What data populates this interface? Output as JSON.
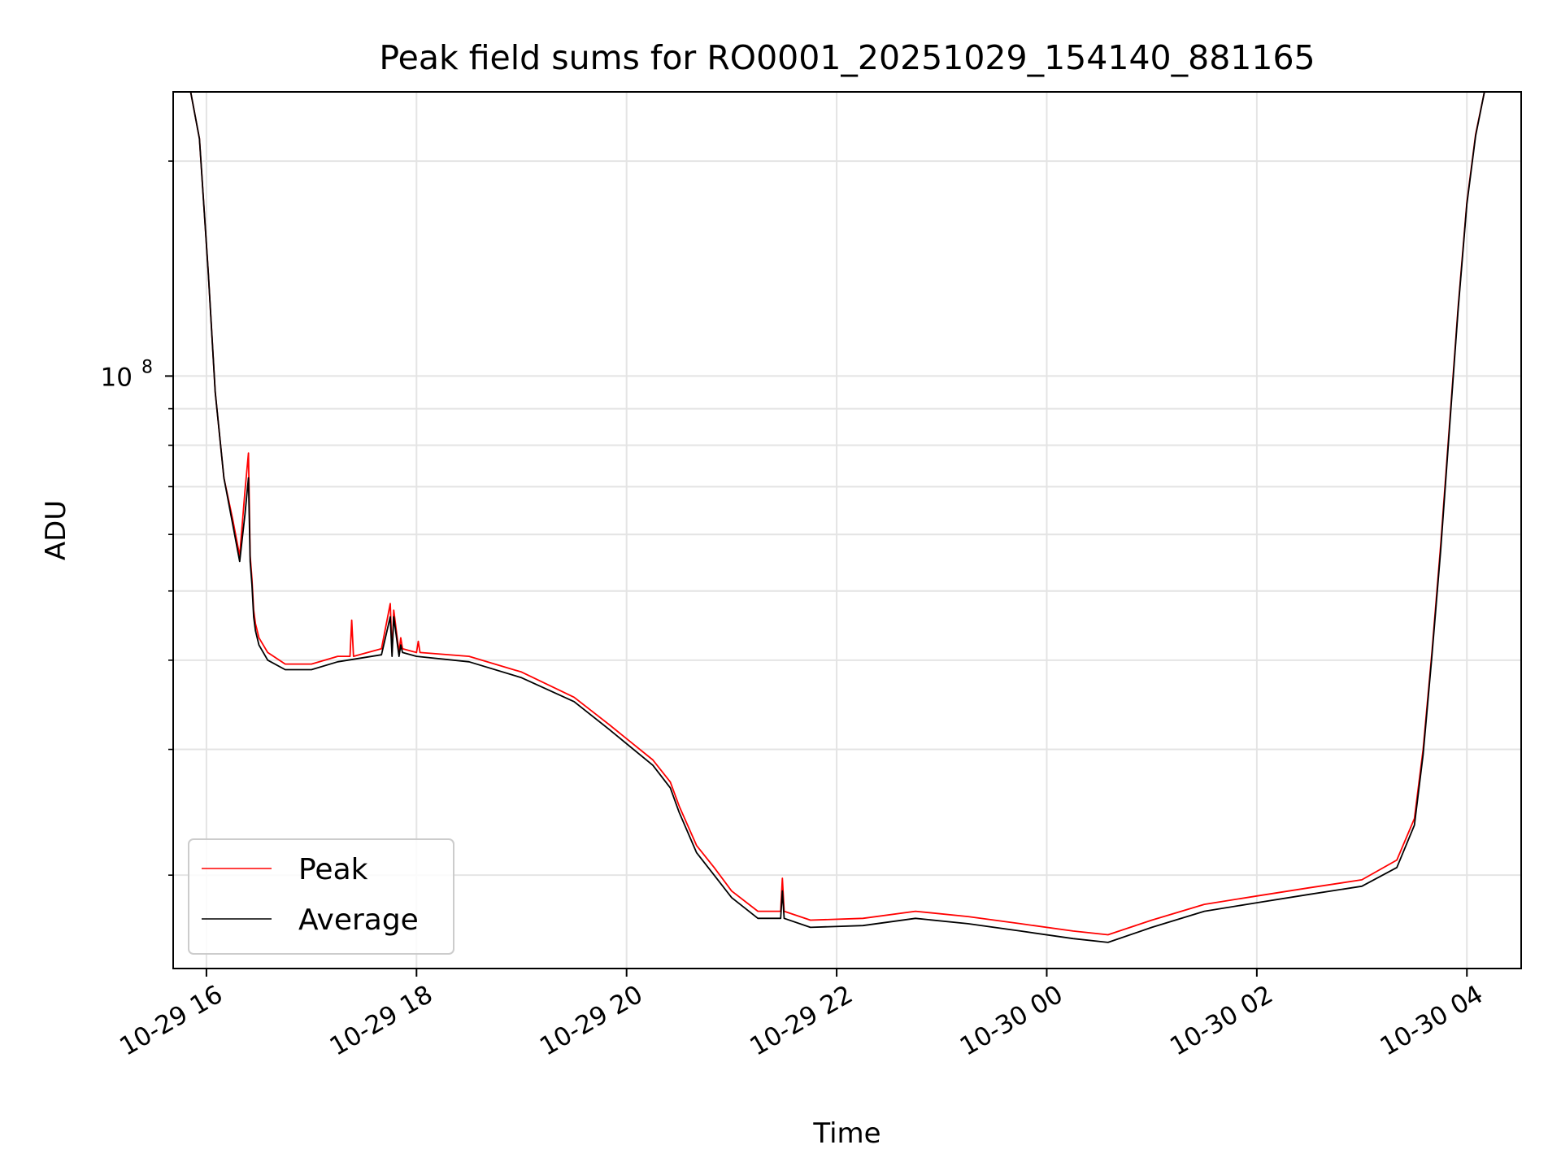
{
  "chart_data": {
    "type": "line",
    "title": "Peak field sums for RO0001_20251029_154140_881165",
    "xlabel": "Time",
    "ylabel": "ADU",
    "y_scale": "log",
    "ylim": [
      14800000,
      250000000
    ],
    "xlim": [
      "2025-10-29 15:41",
      "2025-10-30 04:31"
    ],
    "grid": true,
    "legend_position": "lower-left",
    "x_ticks": [
      {
        "value": "2025-10-29 16:00",
        "label": "10-29 16"
      },
      {
        "value": "2025-10-29 18:00",
        "label": "10-29 18"
      },
      {
        "value": "2025-10-29 20:00",
        "label": "10-29 20"
      },
      {
        "value": "2025-10-29 22:00",
        "label": "10-29 22"
      },
      {
        "value": "2025-10-30 00:00",
        "label": "10-30 00"
      },
      {
        "value": "2025-10-30 02:00",
        "label": "10-30 02"
      },
      {
        "value": "2025-10-30 04:00",
        "label": "10-30 04"
      }
    ],
    "y_ticks": [
      {
        "value": 100000000,
        "label_base": "10",
        "label_exp": "8"
      }
    ],
    "series": [
      {
        "name": "Peak",
        "color": "#ff0000",
        "x": [
          "2025-10-29 15:51",
          "2025-10-29 15:56",
          "2025-10-29 16:01",
          "2025-10-29 16:05",
          "2025-10-29 16:10",
          "2025-10-29 16:15",
          "2025-10-29 16:19",
          "2025-10-29 16:22",
          "2025-10-29 16:24",
          "2025-10-29 16:25",
          "2025-10-29 16:26",
          "2025-10-29 16:27",
          "2025-10-29 16:28",
          "2025-10-29 16:30",
          "2025-10-29 16:35",
          "2025-10-29 16:45",
          "2025-10-29 17:00",
          "2025-10-29 17:15",
          "2025-10-29 17:22",
          "2025-10-29 17:23",
          "2025-10-29 17:24",
          "2025-10-29 17:40",
          "2025-10-29 17:45",
          "2025-10-29 17:46",
          "2025-10-29 17:47",
          "2025-10-29 17:50",
          "2025-10-29 17:51",
          "2025-10-29 17:52",
          "2025-10-29 18:00",
          "2025-10-29 18:01",
          "2025-10-29 18:02",
          "2025-10-29 18:30",
          "2025-10-29 19:00",
          "2025-10-29 19:30",
          "2025-10-29 19:50",
          "2025-10-29 20:15",
          "2025-10-29 20:25",
          "2025-10-29 20:30",
          "2025-10-29 20:40",
          "2025-10-29 20:50",
          "2025-10-29 21:00",
          "2025-10-29 21:15",
          "2025-10-29 21:28",
          "2025-10-29 21:29",
          "2025-10-29 21:30",
          "2025-10-29 21:45",
          "2025-10-29 22:15",
          "2025-10-29 22:45",
          "2025-10-29 23:15",
          "2025-10-29 23:45",
          "2025-10-30 00:15",
          "2025-10-30 00:35",
          "2025-10-30 01:00",
          "2025-10-30 01:30",
          "2025-10-30 02:00",
          "2025-10-30 02:30",
          "2025-10-30 03:00",
          "2025-10-30 03:20",
          "2025-10-30 03:30",
          "2025-10-30 03:35",
          "2025-10-30 03:40",
          "2025-10-30 03:45",
          "2025-10-30 03:50",
          "2025-10-30 03:55",
          "2025-10-30 04:00",
          "2025-10-30 04:05",
          "2025-10-30 04:10",
          "2025-10-30 04:13"
        ],
        "y": [
          250000000,
          215000000,
          140000000,
          95000000,
          72000000,
          63000000,
          56000000,
          69000000,
          78000000,
          56000000,
          52000000,
          47000000,
          45000000,
          43000000,
          41000000,
          39500000,
          39500000,
          40500000,
          40500000,
          45500000,
          40500000,
          41500000,
          48000000,
          41000000,
          47000000,
          41000000,
          43000000,
          41500000,
          41000000,
          42500000,
          41000000,
          40500000,
          38500000,
          35500000,
          32500000,
          29000000,
          27000000,
          25000000,
          22000000,
          20500000,
          19000000,
          17800000,
          17800000,
          19800000,
          17800000,
          17300000,
          17400000,
          17800000,
          17500000,
          17100000,
          16700000,
          16500000,
          17300000,
          18200000,
          18700000,
          19200000,
          19700000,
          21000000,
          24000000,
          30000000,
          41000000,
          58000000,
          85000000,
          125000000,
          175000000,
          218000000,
          250000000,
          250000000
        ]
      },
      {
        "name": "Average",
        "color": "#000000",
        "x": [
          "2025-10-29 15:51",
          "2025-10-29 15:56",
          "2025-10-29 16:01",
          "2025-10-29 16:05",
          "2025-10-29 16:10",
          "2025-10-29 16:15",
          "2025-10-29 16:19",
          "2025-10-29 16:22",
          "2025-10-29 16:24",
          "2025-10-29 16:25",
          "2025-10-29 16:26",
          "2025-10-29 16:27",
          "2025-10-29 16:28",
          "2025-10-29 16:30",
          "2025-10-29 16:35",
          "2025-10-29 16:45",
          "2025-10-29 17:00",
          "2025-10-29 17:15",
          "2025-10-29 17:40",
          "2025-10-29 17:45",
          "2025-10-29 17:46",
          "2025-10-29 17:47",
          "2025-10-29 17:50",
          "2025-10-29 17:51",
          "2025-10-29 17:52",
          "2025-10-29 18:00",
          "2025-10-29 18:30",
          "2025-10-29 19:00",
          "2025-10-29 19:30",
          "2025-10-29 19:50",
          "2025-10-29 20:15",
          "2025-10-29 20:25",
          "2025-10-29 20:30",
          "2025-10-29 20:40",
          "2025-10-29 20:50",
          "2025-10-29 21:00",
          "2025-10-29 21:15",
          "2025-10-29 21:28",
          "2025-10-29 21:29",
          "2025-10-29 21:30",
          "2025-10-29 21:45",
          "2025-10-29 22:15",
          "2025-10-29 22:45",
          "2025-10-29 23:15",
          "2025-10-29 23:45",
          "2025-10-30 00:15",
          "2025-10-30 00:35",
          "2025-10-30 01:00",
          "2025-10-30 01:30",
          "2025-10-30 02:00",
          "2025-10-30 02:30",
          "2025-10-30 03:00",
          "2025-10-30 03:20",
          "2025-10-30 03:30",
          "2025-10-30 03:35",
          "2025-10-30 03:40",
          "2025-10-30 03:45",
          "2025-10-30 03:50",
          "2025-10-30 03:55",
          "2025-10-30 04:00",
          "2025-10-30 04:05",
          "2025-10-30 04:10",
          "2025-10-30 04:13"
        ],
        "y": [
          250000000,
          215000000,
          140000000,
          95000000,
          72000000,
          62000000,
          55000000,
          64000000,
          72000000,
          55000000,
          51000000,
          46000000,
          44000000,
          42000000,
          40000000,
          38800000,
          38800000,
          39800000,
          40700000,
          46000000,
          40500000,
          46000000,
          40500000,
          42000000,
          41000000,
          40500000,
          39800000,
          37800000,
          35000000,
          32000000,
          28500000,
          26500000,
          24500000,
          21500000,
          20000000,
          18600000,
          17400000,
          17400000,
          19000000,
          17400000,
          16900000,
          17000000,
          17400000,
          17100000,
          16700000,
          16300000,
          16100000,
          16900000,
          17800000,
          18300000,
          18800000,
          19300000,
          20500000,
          23500000,
          29500000,
          40500000,
          57000000,
          84000000,
          124000000,
          174000000,
          217000000,
          250000000,
          250000000
        ]
      }
    ]
  }
}
